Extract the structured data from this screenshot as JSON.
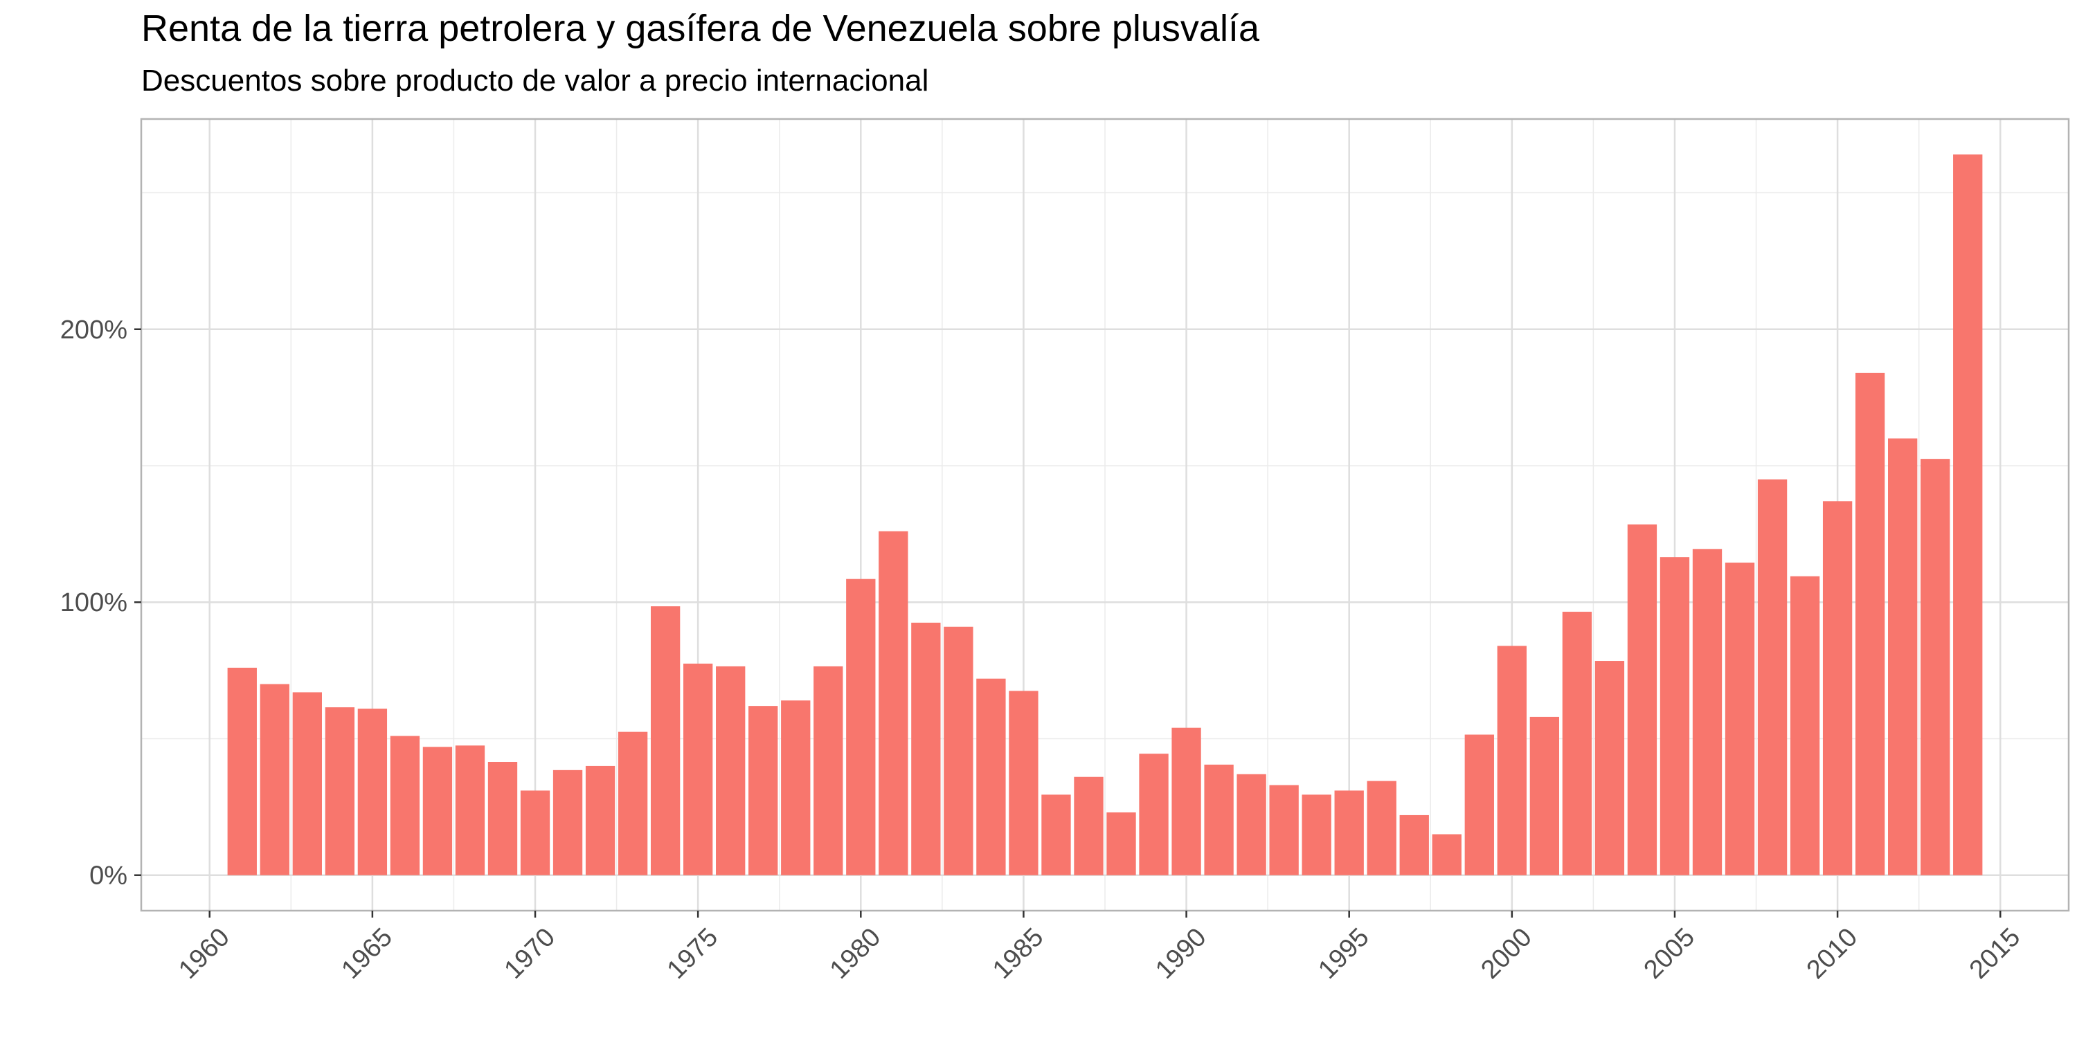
{
  "chart_data": {
    "type": "bar",
    "title": "Renta de la tierra petrolera y gasífera de Venezuela sobre plusvalía",
    "subtitle": "Descuentos sobre producto de valor a precio internacional",
    "xlabel": "",
    "ylabel": "",
    "bar_color": "#F8766D",
    "grid": true,
    "legend": "none",
    "xlim": [
      1957.9,
      2017.1
    ],
    "ylim": [
      -0.13,
      2.77
    ],
    "x_ticks": [
      1960,
      1965,
      1970,
      1975,
      1980,
      1985,
      1990,
      1995,
      2000,
      2005,
      2010,
      2015
    ],
    "x_tick_labels": [
      "1960",
      "1965",
      "1970",
      "1975",
      "1980",
      "1985",
      "1990",
      "1995",
      "2000",
      "2005",
      "2010",
      "2015"
    ],
    "y_ticks": [
      0,
      1,
      2
    ],
    "y_tick_labels": [
      "0%",
      "100%",
      "200%"
    ],
    "x": [
      1961,
      1962,
      1963,
      1964,
      1965,
      1966,
      1967,
      1968,
      1969,
      1970,
      1971,
      1972,
      1973,
      1974,
      1975,
      1976,
      1977,
      1978,
      1979,
      1980,
      1981,
      1982,
      1983,
      1984,
      1985,
      1986,
      1987,
      1988,
      1989,
      1990,
      1991,
      1992,
      1993,
      1994,
      1995,
      1996,
      1997,
      1998,
      1999,
      2000,
      2001,
      2002,
      2003,
      2004,
      2005,
      2006,
      2007,
      2008,
      2009,
      2010,
      2011,
      2012,
      2013,
      2014
    ],
    "values": [
      0.76,
      0.7,
      0.67,
      0.615,
      0.61,
      0.51,
      0.47,
      0.475,
      0.415,
      0.31,
      0.385,
      0.4,
      0.525,
      0.985,
      0.775,
      0.765,
      0.62,
      0.64,
      0.765,
      1.085,
      1.26,
      0.925,
      0.91,
      0.72,
      0.675,
      0.295,
      0.36,
      0.23,
      0.445,
      0.54,
      0.405,
      0.37,
      0.33,
      0.295,
      0.31,
      0.345,
      0.22,
      0.15,
      0.515,
      0.84,
      0.58,
      0.965,
      0.785,
      1.285,
      1.165,
      1.195,
      1.145,
      1.45,
      1.095,
      1.37,
      1.84,
      1.6,
      1.525,
      2.64
    ]
  }
}
